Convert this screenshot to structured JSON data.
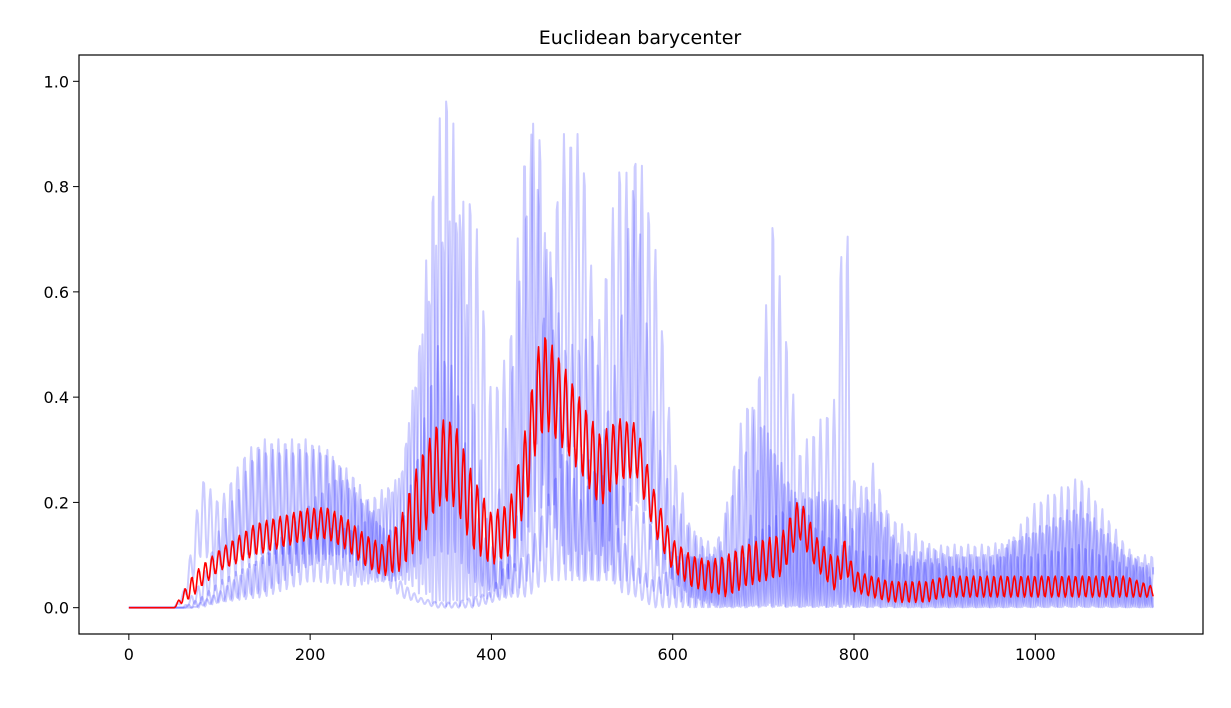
{
  "chart_data": {
    "type": "line",
    "title": "Euclidean barycenter",
    "xlabel": "",
    "ylabel": "",
    "xlim": [
      -55,
      1185
    ],
    "ylim": [
      -0.05,
      1.05
    ],
    "xticks": [
      0,
      200,
      400,
      600,
      800,
      1000
    ],
    "xtick_labels": [
      "0",
      "200",
      "400",
      "600",
      "800",
      "1000"
    ],
    "yticks": [
      0.0,
      0.2,
      0.4,
      0.6,
      0.8,
      1.0
    ],
    "ytick_labels": [
      "0.0",
      "0.2",
      "0.4",
      "0.6",
      "0.8",
      "1.0"
    ],
    "grid": false,
    "legend": "none",
    "colors": {
      "series": "#0000ff",
      "barycenter": "#ff0000",
      "axes": "#000000",
      "background": "#ffffff"
    },
    "series_opacity": 0.2,
    "series": [
      {
        "role": "input",
        "x": [
          0,
          50,
          60,
          70,
          80,
          100,
          130,
          150,
          180,
          200,
          230,
          250,
          280,
          300,
          320,
          340,
          350,
          360,
          380,
          400,
          420,
          440,
          460,
          480,
          500,
          520,
          540,
          560,
          580,
          600,
          620,
          650,
          680,
          700,
          740,
          760,
          790,
          820,
          860,
          900,
          950,
          1000,
          1050,
          1100,
          1130
        ],
        "y_base": [
          0.0,
          0.0,
          0.03,
          0.12,
          0.25,
          0.2,
          0.3,
          0.32,
          0.32,
          0.32,
          0.28,
          0.25,
          0.15,
          0.05,
          0.02,
          0.01,
          0.01,
          0.01,
          0.02,
          0.03,
          0.1,
          0.3,
          0.6,
          0.9,
          0.9,
          0.4,
          0.15,
          0.08,
          0.05,
          0.08,
          0.1,
          0.1,
          0.4,
          0.35,
          0.2,
          0.15,
          0.12,
          0.1,
          0.08,
          0.1,
          0.1,
          0.15,
          0.2,
          0.1,
          0.08
        ],
        "y_min": [
          0.0,
          0.0,
          0.01,
          0.05,
          0.1,
          0.08,
          0.1,
          0.1,
          0.1,
          0.1,
          0.1,
          0.08,
          0.05,
          0.02,
          0.01,
          0.0,
          0.0,
          0.0,
          0.0,
          0.01,
          0.02,
          0.05,
          0.1,
          0.3,
          0.3,
          0.1,
          0.03,
          0.02,
          0.0,
          0.0,
          0.0,
          0.0,
          0.0,
          0.0,
          0.0,
          0.0,
          0.0,
          0.0,
          0.0,
          0.0,
          0.0,
          0.0,
          0.0,
          0.0,
          0.0
        ]
      },
      {
        "role": "input",
        "x": [
          0,
          60,
          80,
          100,
          150,
          200,
          250,
          280,
          300,
          320,
          340,
          350,
          360,
          380,
          400,
          420,
          440,
          460,
          480,
          500,
          520,
          540,
          560,
          580,
          600,
          620,
          640,
          680,
          700,
          710,
          740,
          760,
          780,
          790,
          800,
          820,
          860,
          900,
          950,
          1000,
          1050,
          1100,
          1130
        ],
        "y_base": [
          0.0,
          0.0,
          0.02,
          0.05,
          0.1,
          0.15,
          0.15,
          0.2,
          0.25,
          0.5,
          0.9,
          1.0,
          0.9,
          0.4,
          0.1,
          0.08,
          0.1,
          0.2,
          0.3,
          0.3,
          0.25,
          0.25,
          0.2,
          0.15,
          0.1,
          0.1,
          0.08,
          0.3,
          0.5,
          0.75,
          0.3,
          0.35,
          0.4,
          0.9,
          0.25,
          0.2,
          0.15,
          0.1,
          0.1,
          0.1,
          0.12,
          0.08,
          0.08
        ],
        "y_min": [
          0.0,
          0.0,
          0.0,
          0.01,
          0.02,
          0.05,
          0.04,
          0.05,
          0.05,
          0.05,
          0.0,
          0.0,
          0.0,
          0.02,
          0.02,
          0.02,
          0.02,
          0.05,
          0.05,
          0.05,
          0.05,
          0.05,
          0.05,
          0.03,
          0.02,
          0.0,
          0.0,
          0.0,
          0.0,
          0.0,
          0.0,
          0.0,
          0.0,
          0.0,
          0.0,
          0.0,
          0.0,
          0.0,
          0.0,
          0.0,
          0.0,
          0.0,
          0.0
        ]
      },
      {
        "role": "input",
        "x": [
          0,
          70,
          100,
          150,
          200,
          230,
          250,
          280,
          300,
          320,
          340,
          360,
          380,
          400,
          420,
          440,
          450,
          460,
          480,
          500,
          520,
          540,
          560,
          580,
          600,
          620,
          650,
          680,
          700,
          720,
          740,
          760,
          780,
          800,
          820,
          850,
          900,
          950,
          1000,
          1050,
          1100,
          1130
        ],
        "y_base": [
          0.0,
          0.0,
          0.03,
          0.1,
          0.2,
          0.25,
          0.22,
          0.15,
          0.15,
          0.3,
          0.5,
          0.45,
          0.2,
          0.1,
          0.4,
          0.8,
          1.0,
          0.7,
          0.3,
          0.2,
          0.3,
          0.5,
          0.9,
          0.7,
          0.3,
          0.15,
          0.08,
          0.1,
          0.35,
          0.25,
          0.2,
          0.22,
          0.2,
          0.15,
          0.28,
          0.1,
          0.12,
          0.12,
          0.14,
          0.18,
          0.1,
          0.1
        ],
        "y_min": [
          0.0,
          0.0,
          0.01,
          0.03,
          0.08,
          0.1,
          0.1,
          0.06,
          0.06,
          0.08,
          0.1,
          0.1,
          0.05,
          0.03,
          0.05,
          0.1,
          0.3,
          0.2,
          0.08,
          0.05,
          0.05,
          0.1,
          0.2,
          0.15,
          0.05,
          0.02,
          0.0,
          0.0,
          0.0,
          0.0,
          0.0,
          0.0,
          0.0,
          0.0,
          0.0,
          0.0,
          0.0,
          0.0,
          0.0,
          0.0,
          0.0,
          0.0
        ]
      },
      {
        "role": "input",
        "x": [
          0,
          60,
          80,
          100,
          140,
          180,
          220,
          260,
          300,
          340,
          380,
          400,
          420,
          440,
          460,
          480,
          500,
          520,
          540,
          560,
          580,
          600,
          620,
          660,
          700,
          740,
          780,
          820,
          860,
          900,
          950,
          1000,
          1050,
          1100,
          1130
        ],
        "y_base": [
          0.0,
          0.0,
          0.05,
          0.15,
          0.3,
          0.3,
          0.3,
          0.2,
          0.25,
          0.7,
          0.8,
          0.4,
          0.5,
          0.95,
          0.7,
          0.5,
          0.5,
          0.55,
          0.85,
          0.8,
          0.35,
          0.2,
          0.15,
          0.1,
          0.15,
          0.22,
          0.2,
          0.18,
          0.1,
          0.08,
          0.07,
          0.2,
          0.25,
          0.12,
          0.05
        ],
        "y_min": [
          0.0,
          0.0,
          0.01,
          0.04,
          0.08,
          0.08,
          0.08,
          0.05,
          0.05,
          0.0,
          0.0,
          0.02,
          0.05,
          0.15,
          0.2,
          0.1,
          0.1,
          0.1,
          0.15,
          0.2,
          0.08,
          0.05,
          0.02,
          0.0,
          0.0,
          0.0,
          0.0,
          0.0,
          0.0,
          0.0,
          0.0,
          0.0,
          0.0,
          0.0,
          0.0
        ]
      }
    ],
    "barycenter": {
      "x": [
        0,
        50,
        55,
        60,
        70,
        80,
        100,
        120,
        140,
        160,
        180,
        200,
        220,
        240,
        260,
        280,
        300,
        320,
        340,
        350,
        360,
        380,
        400,
        420,
        440,
        450,
        460,
        480,
        500,
        520,
        540,
        560,
        580,
        600,
        620,
        640,
        660,
        680,
        700,
        720,
        740,
        760,
        780,
        790,
        800,
        820,
        840,
        860,
        880,
        900,
        950,
        1000,
        1050,
        1100,
        1130
      ],
      "y": [
        0.0,
        0.0,
        0.01,
        0.02,
        0.04,
        0.06,
        0.09,
        0.11,
        0.13,
        0.14,
        0.15,
        0.16,
        0.16,
        0.14,
        0.11,
        0.09,
        0.12,
        0.2,
        0.27,
        0.28,
        0.27,
        0.18,
        0.13,
        0.15,
        0.28,
        0.4,
        0.43,
        0.38,
        0.32,
        0.26,
        0.3,
        0.3,
        0.18,
        0.1,
        0.07,
        0.06,
        0.06,
        0.08,
        0.09,
        0.1,
        0.17,
        0.1,
        0.06,
        0.1,
        0.05,
        0.04,
        0.03,
        0.03,
        0.03,
        0.04,
        0.04,
        0.04,
        0.04,
        0.04,
        0.03
      ],
      "amplitude": [
        0.0,
        0.0,
        0.005,
        0.01,
        0.02,
        0.02,
        0.02,
        0.025,
        0.03,
        0.03,
        0.03,
        0.03,
        0.03,
        0.03,
        0.03,
        0.03,
        0.05,
        0.08,
        0.08,
        0.08,
        0.08,
        0.07,
        0.05,
        0.05,
        0.08,
        0.09,
        0.09,
        0.08,
        0.07,
        0.07,
        0.06,
        0.05,
        0.04,
        0.03,
        0.03,
        0.03,
        0.04,
        0.04,
        0.04,
        0.04,
        0.04,
        0.03,
        0.03,
        0.03,
        0.02,
        0.02,
        0.02,
        0.02,
        0.02,
        0.02,
        0.02,
        0.02,
        0.02,
        0.02,
        0.01
      ]
    }
  }
}
